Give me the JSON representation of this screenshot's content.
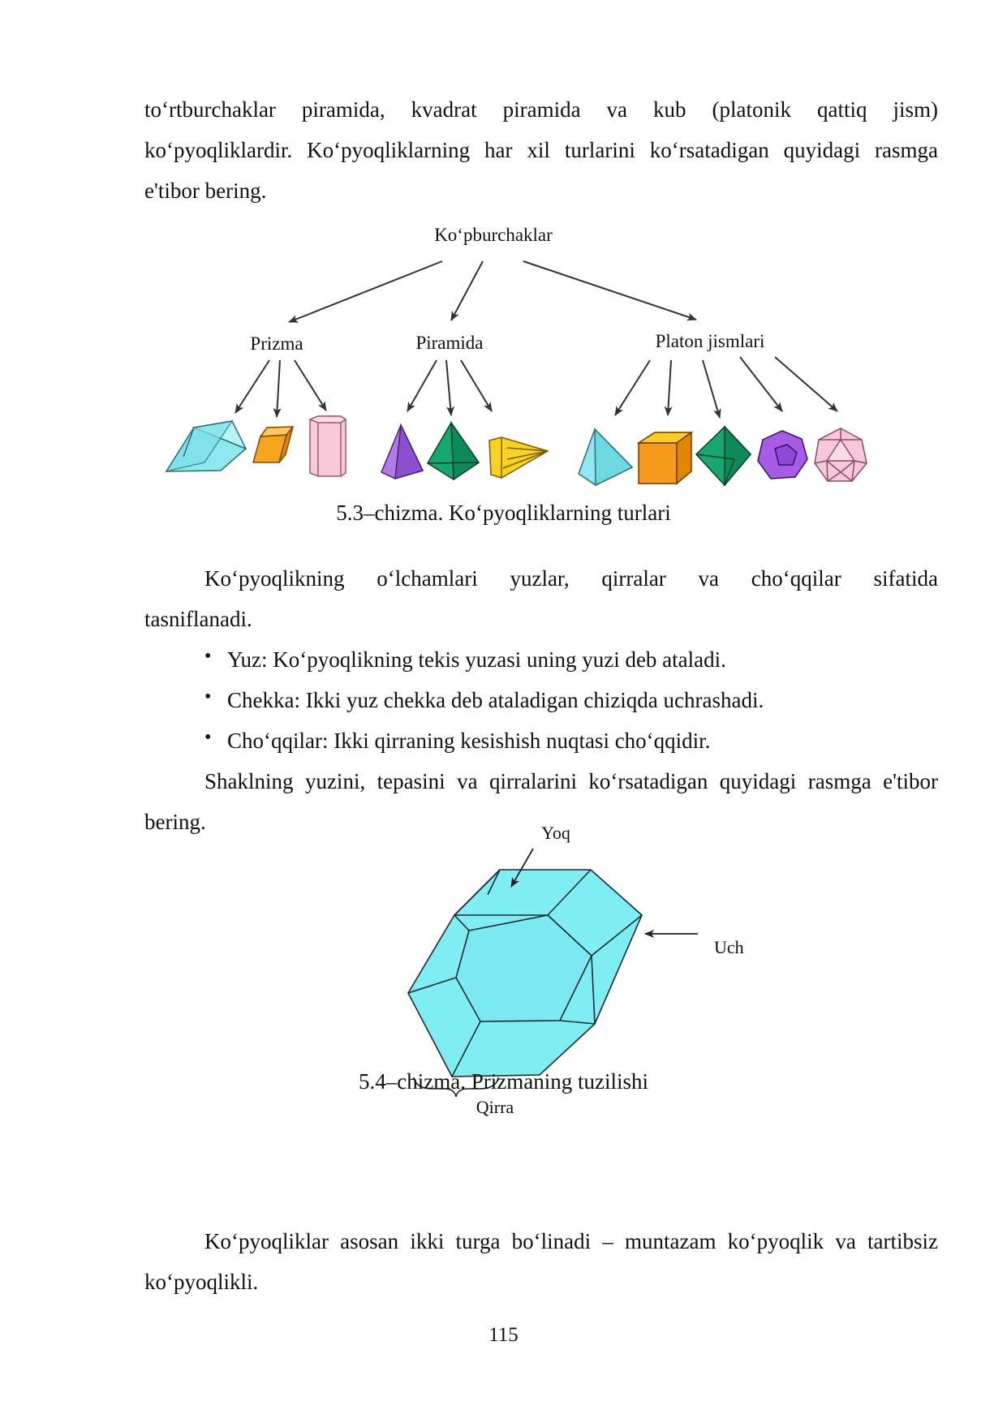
{
  "intro": {
    "line1": "to‘rtburchaklar piramida, kvadrat piramida va kub (platonik qattiq jism)",
    "line2": "ko‘pyoqliklardir. Ko‘pyoqliklarning har xil turlarini ko‘rsatadigan quyidagi rasmga",
    "line3": "e'tibor bering."
  },
  "figure1": {
    "root": "Ko‘pburchaklar",
    "branches": [
      "Prizma",
      "Piramida",
      "Platon jismlari"
    ],
    "caption": "5.3–chizma. Ko‘pyoqliklarning turlari"
  },
  "section": {
    "p1_line1": "Ko‘pyoqlikning o‘lchamlari yuzlar, qirralar va cho‘qqilar sifatida",
    "p1_line2": "tasniflanadi.",
    "bullets": [
      "Yuz: Ko‘pyoqlikning tekis yuzasi uning yuzi deb ataladi.",
      "Chekka: Ikki yuz chekka deb ataladigan chiziqda uchrashadi.",
      "Cho‘qqilar: Ikki qirraning kesishish nuqtasi cho‘qqidir."
    ],
    "p2_line1": "Shaklning yuzini, tepasini va qirralarini ko‘rsatadigan quyidagi rasmga e'tibor",
    "p2_line2": "bering."
  },
  "figure2": {
    "label_face": "Yoq",
    "label_vertex": "Uch",
    "label_edge": "Qirra",
    "caption": "5.4–chizma. Prizmaning tuzilishi"
  },
  "closing": {
    "line1": "Ko‘pyoqliklar asosan ikki turga bo‘linadi – muntazam ko‘pyoqlik va tartibsiz",
    "line2": "ko‘pyoqlikli."
  },
  "page_number": "115",
  "colors": {
    "cyan": "#7ee8ee",
    "orange": "#f5a623",
    "pink": "#f8c8d8",
    "purple": "#a86be0",
    "green": "#14a86a",
    "yellow": "#f7d21e"
  }
}
